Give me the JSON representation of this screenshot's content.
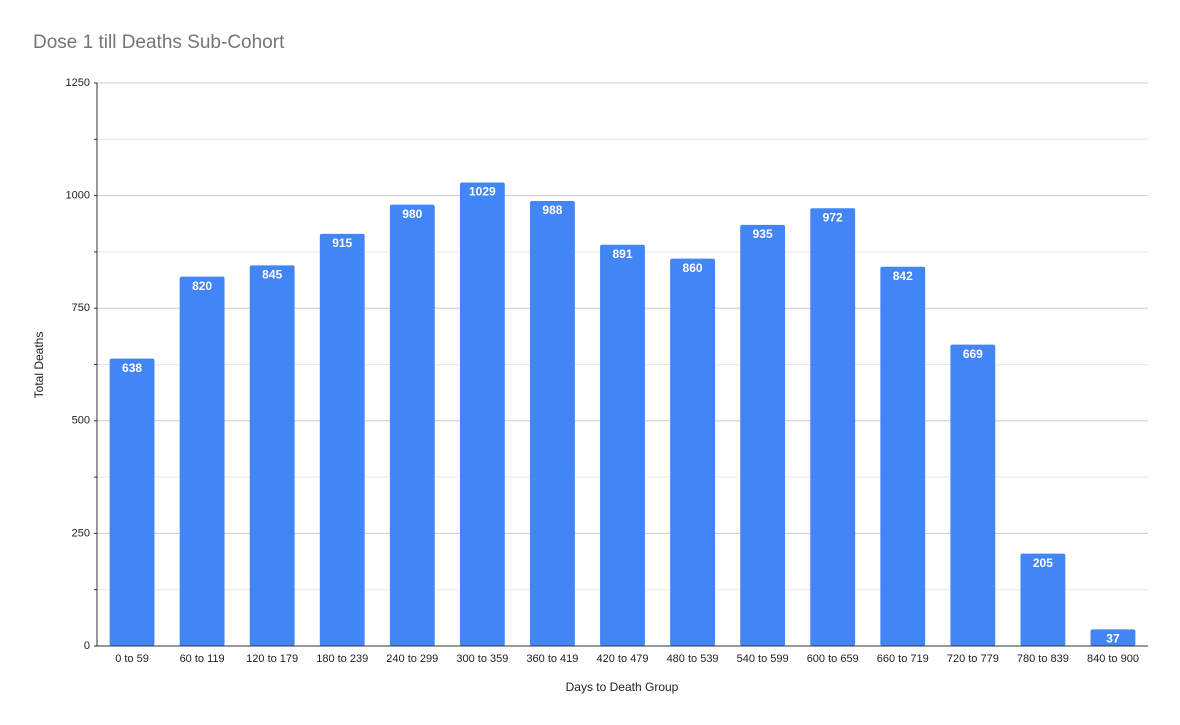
{
  "chart_data": {
    "type": "bar",
    "title": "Dose 1 till Deaths Sub-Cohort",
    "x_label": "Days to Death Group",
    "y_label": "Total Deaths",
    "categories": [
      "0 to 59",
      "60 to 119",
      "120 to 179",
      "180 to 239",
      "240 to 299",
      "300 to 359",
      "360 to 419",
      "420 to 479",
      "480 to 539",
      "540 to 599",
      "600 to 659",
      "660 to 719",
      "720 to 779",
      "780 to 839",
      "840 to 900"
    ],
    "values": [
      638,
      820,
      845,
      915,
      980,
      1029,
      988,
      891,
      860,
      935,
      972,
      842,
      669,
      205,
      37
    ],
    "color": "#4285f4",
    "ylim": [
      0,
      1250
    ],
    "yticks": [
      0,
      250,
      500,
      750,
      1000,
      1250
    ],
    "grid": true,
    "minor_grid": true,
    "data_labels": true
  }
}
